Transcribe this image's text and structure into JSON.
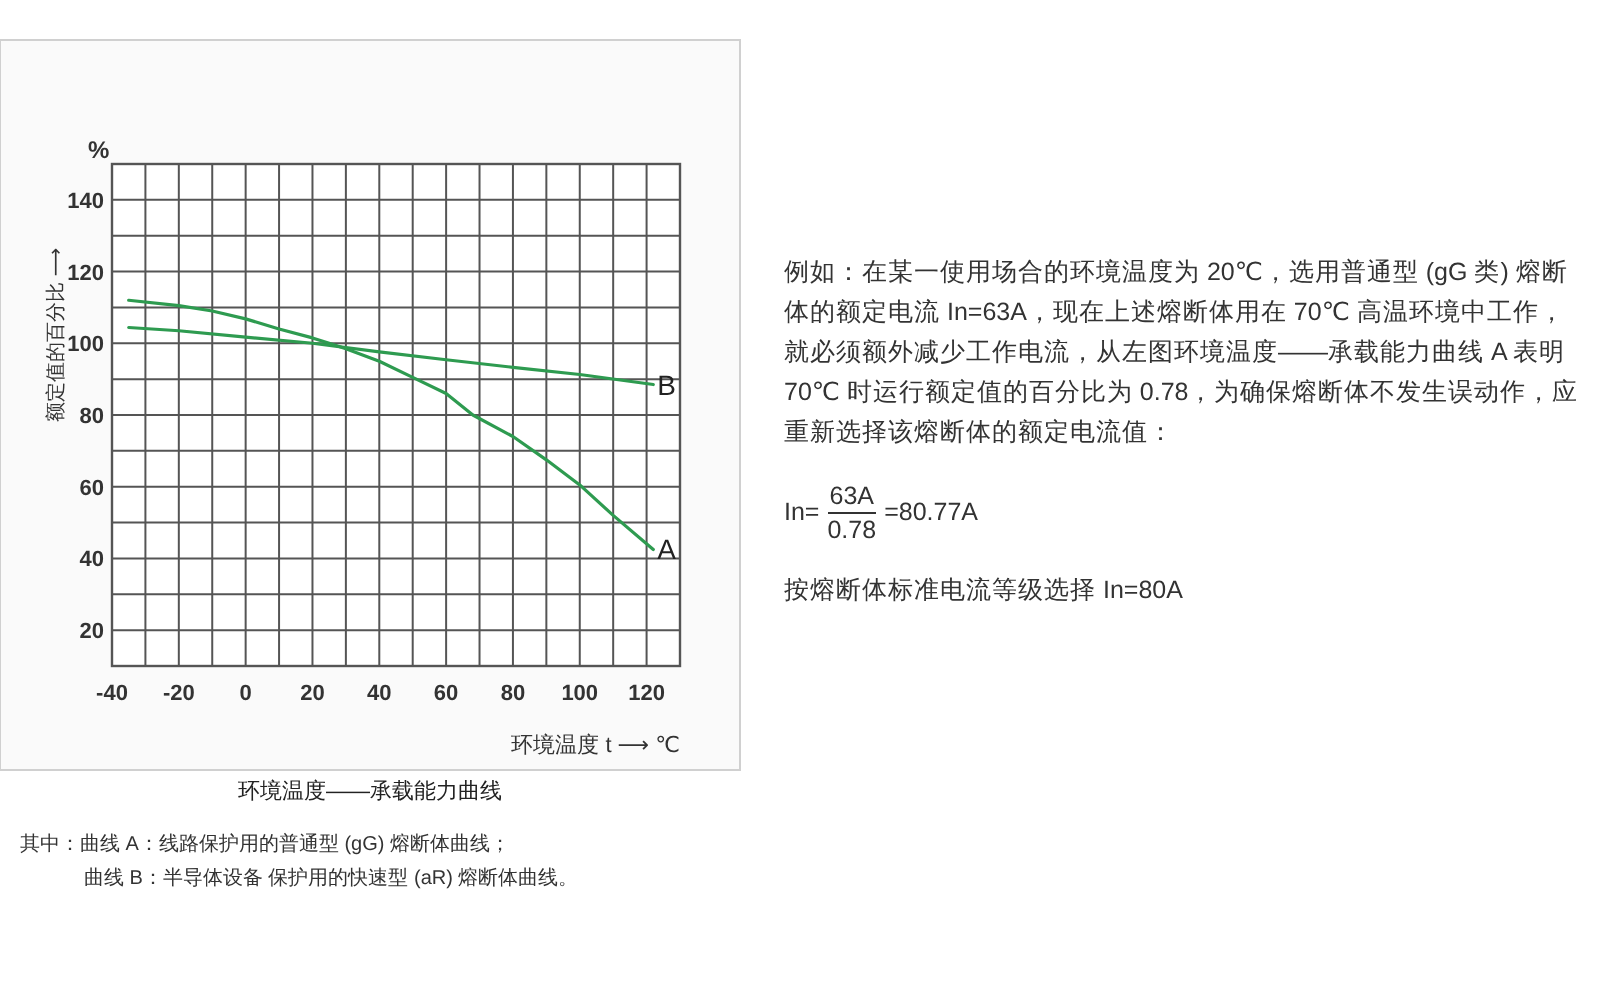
{
  "chart_data": [
    {
      "type": "line",
      "title": "环境温度——承载能力曲线",
      "xlabel": "环境温度 t ⟶ ℃",
      "ylabel": "额定值的百分比 ⟶",
      "annotations": [
        "%",
        "其中：曲线 A：线路保护用的普通型 (gG) 熔断体曲线；",
        "曲线 B：半导体设备 保护用的快速型 (aR) 熔断体曲线。"
      ],
      "xlim": [
        -40,
        130
      ],
      "ylim": [
        10,
        150
      ],
      "xticks": [
        -40,
        {
          "value": -30,
          "label": null
        },
        -20,
        {
          "value": -10,
          "label": null
        },
        0,
        {
          "value": 10,
          "label": null
        },
        20,
        {
          "value": 30,
          "label": null
        },
        40,
        {
          "value": 50,
          "label": null
        },
        60,
        {
          "value": 70,
          "label": null
        },
        80,
        {
          "value": 90,
          "label": null
        },
        100,
        {
          "value": 110,
          "label": null
        },
        120,
        {
          "value": 130,
          "label": null
        }
      ],
      "yticks": [
        {
          "value": 10,
          "label": null
        },
        20,
        {
          "value": 30,
          "label": null
        },
        40,
        {
          "value": 50,
          "label": null
        },
        60,
        {
          "value": 70,
          "label": null
        },
        80,
        {
          "value": 90,
          "label": null
        },
        100,
        {
          "value": 110,
          "label": null
        },
        120,
        {
          "value": 130,
          "label": null
        },
        140,
        {
          "value": 150,
          "label": null
        }
      ],
      "grid": true,
      "legend": false,
      "marker": "none",
      "line_style": "solid",
      "series": [
        {
          "name": "A",
          "color": "#2e9b50",
          "x": [
            -35,
            -20,
            -10,
            0,
            10,
            20,
            25,
            30,
            40,
            50,
            60,
            68,
            80,
            90,
            100,
            110,
            122
          ],
          "values": [
            112,
            110.5,
            109,
            106.8,
            104,
            101.5,
            100,
            98.5,
            95,
            90.5,
            86,
            80,
            74,
            67.5,
            60.5,
            52,
            42.5
          ]
        },
        {
          "name": "B",
          "color": "#2e9b50",
          "x": [
            -35,
            -20,
            0,
            20,
            40,
            60,
            80,
            100,
            122
          ],
          "values": [
            104.4,
            103.5,
            101.7,
            100,
            97.6,
            95.4,
            93.3,
            91.3,
            88.5
          ]
        }
      ]
    },
    {
      "type": "other",
      "annotations": [
        "例如：在某一使用场合的环境温度为 20℃，选用普通型 (gG 类) 熔断体的额定电流 In=63A，现在上述熔断体用在 70℃ 高温环境中工作，就必须额外减少工作电流，从左图环境温度——承载能力曲线 A 表明 70℃ 时运行额定值的百分比为 0.78，为确保熔断体不发生误动作，应重新选择该熔断体的额定电流值：",
        "In=",
        "63A",
        "0.78",
        "=80.77A",
        "按熔断体标准电流等级选择 In=80A"
      ]
    }
  ]
}
